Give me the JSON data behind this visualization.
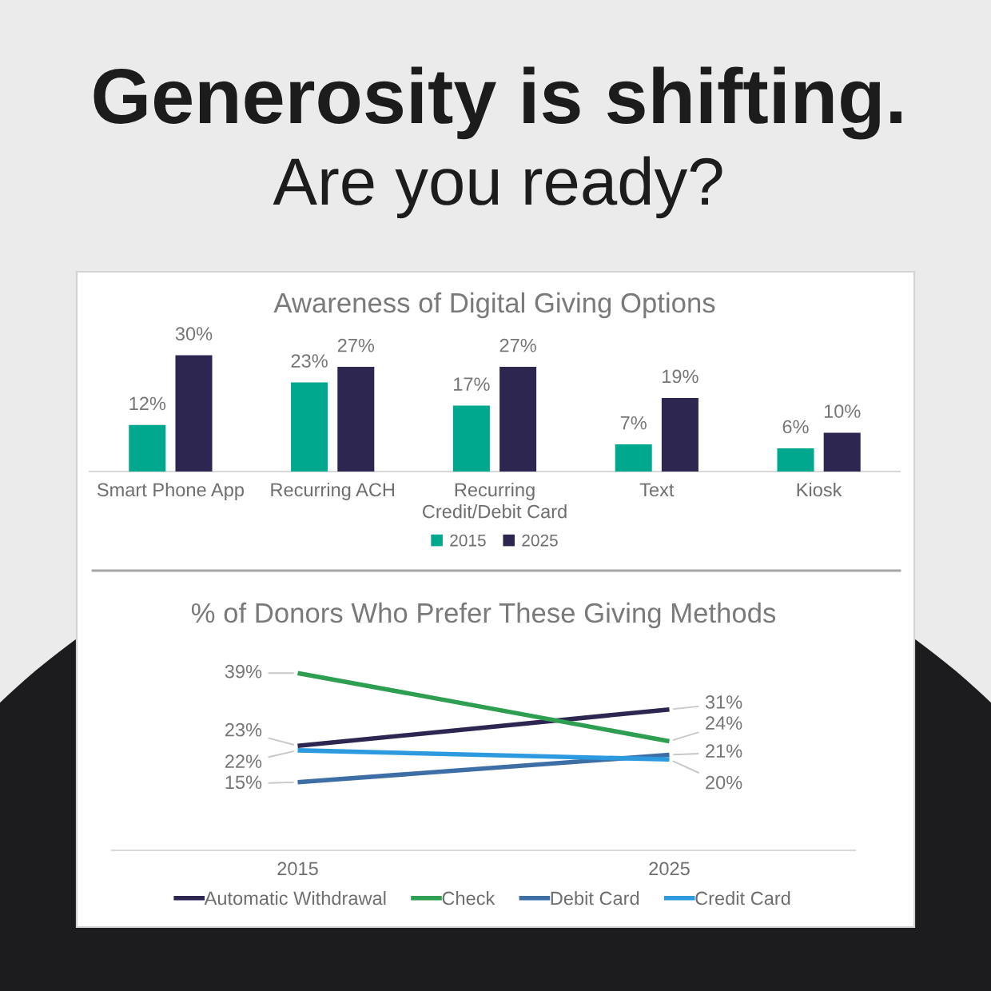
{
  "chart_data": [
    {
      "type": "other",
      "title": "Generosity is shifting.",
      "subtitle": "Are you ready?"
    },
    {
      "type": "bar",
      "title": "Awareness of Digital Giving Options",
      "categories": [
        "Smart Phone App",
        "Recurring ACH",
        "Recurring\nCredit/Debit Card",
        "Text",
        "Kiosk"
      ],
      "series": [
        {
          "name": "2015",
          "color": "#00a88e",
          "values": [
            12,
            23,
            17,
            7,
            6
          ],
          "value_labels": [
            "12%",
            "23%",
            "17%",
            "7%",
            "6%"
          ]
        },
        {
          "name": "2025",
          "color": "#2d2650",
          "values": [
            30,
            27,
            27,
            19,
            10
          ],
          "value_labels": [
            "30%",
            "27%",
            "27%",
            "19%",
            "10%"
          ]
        }
      ],
      "tick_labels": "x",
      "legend": "bottom"
    },
    {
      "type": "line",
      "title": "% of Donors Who Prefer These Giving Methods",
      "categories": [
        "2015",
        "2025"
      ],
      "series": [
        {
          "name": "Automatic Withdrawal",
          "color": "#2d2650",
          "values": [
            23,
            31
          ],
          "value_labels": [
            "23%",
            "31%"
          ]
        },
        {
          "name": "Check",
          "color": "#2e9e50",
          "values": [
            39,
            24
          ],
          "value_labels": [
            "39%",
            "24%"
          ]
        },
        {
          "name": "Debit Card",
          "color": "#3e6ea6",
          "values": [
            15,
            21
          ],
          "value_labels": [
            "15%",
            "21%"
          ]
        },
        {
          "name": "Credit Card",
          "color": "#2d9ae0",
          "values": [
            22,
            20
          ],
          "value_labels": [
            "22%",
            "20%"
          ]
        }
      ],
      "tick_labels": "x",
      "legend": "bottom"
    }
  ]
}
